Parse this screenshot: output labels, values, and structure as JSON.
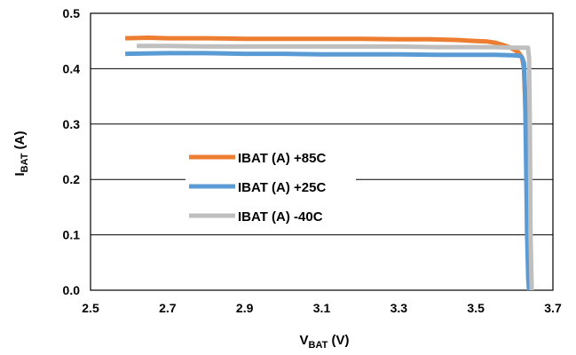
{
  "chart_data": {
    "type": "line",
    "title": "",
    "xlabel": {
      "main": "V",
      "sub": "BAT",
      "unit": " (V)"
    },
    "ylabel": {
      "main": "I",
      "sub": "BAT",
      "unit": " (A)"
    },
    "xlim": [
      2.5,
      3.7
    ],
    "ylim": [
      0.0,
      0.5
    ],
    "x_ticks": [
      "2.5",
      "2.7",
      "2.9",
      "3.1",
      "3.3",
      "3.5",
      "3.7"
    ],
    "y_ticks": [
      "0.0",
      "0.1",
      "0.2",
      "0.3",
      "0.4",
      "0.5"
    ],
    "grid": "horizontal",
    "legend_position": "center-left",
    "series": [
      {
        "name": "IBAT (A) +85C",
        "color": "#ED7D31",
        "x": [
          2.59,
          2.65,
          2.7,
          2.8,
          2.9,
          3.0,
          3.1,
          3.2,
          3.3,
          3.38,
          3.45,
          3.5,
          3.53,
          3.55,
          3.57,
          3.59,
          3.61,
          3.62,
          3.625,
          3.63,
          3.633,
          3.636,
          3.638
        ],
        "y": [
          0.455,
          0.456,
          0.455,
          0.455,
          0.454,
          0.454,
          0.454,
          0.454,
          0.453,
          0.453,
          0.452,
          0.45,
          0.449,
          0.447,
          0.443,
          0.438,
          0.43,
          0.42,
          0.4,
          0.3,
          0.18,
          0.05,
          0.0
        ]
      },
      {
        "name": "IBAT (A) +25C",
        "color": "#5B9BD5",
        "x": [
          2.59,
          2.7,
          2.8,
          2.9,
          3.0,
          3.1,
          3.2,
          3.3,
          3.4,
          3.5,
          3.55,
          3.6,
          3.615,
          3.62,
          3.625,
          3.628,
          3.63,
          3.633,
          3.636,
          3.638
        ],
        "y": [
          0.427,
          0.428,
          0.428,
          0.427,
          0.427,
          0.426,
          0.426,
          0.426,
          0.425,
          0.425,
          0.425,
          0.424,
          0.423,
          0.42,
          0.41,
          0.35,
          0.25,
          0.1,
          0.02,
          0.0
        ]
      },
      {
        "name": "IBAT (A) -40C",
        "color": "#BFBFBF",
        "x": [
          2.62,
          2.7,
          2.8,
          2.9,
          3.0,
          3.1,
          3.2,
          3.3,
          3.4,
          3.5,
          3.55,
          3.6,
          3.62,
          3.63,
          3.635,
          3.638,
          3.64,
          3.642,
          3.645
        ],
        "y": [
          0.441,
          0.441,
          0.44,
          0.44,
          0.44,
          0.44,
          0.44,
          0.44,
          0.439,
          0.439,
          0.439,
          0.438,
          0.438,
          0.438,
          0.438,
          0.42,
          0.3,
          0.1,
          0.0
        ]
      }
    ]
  }
}
